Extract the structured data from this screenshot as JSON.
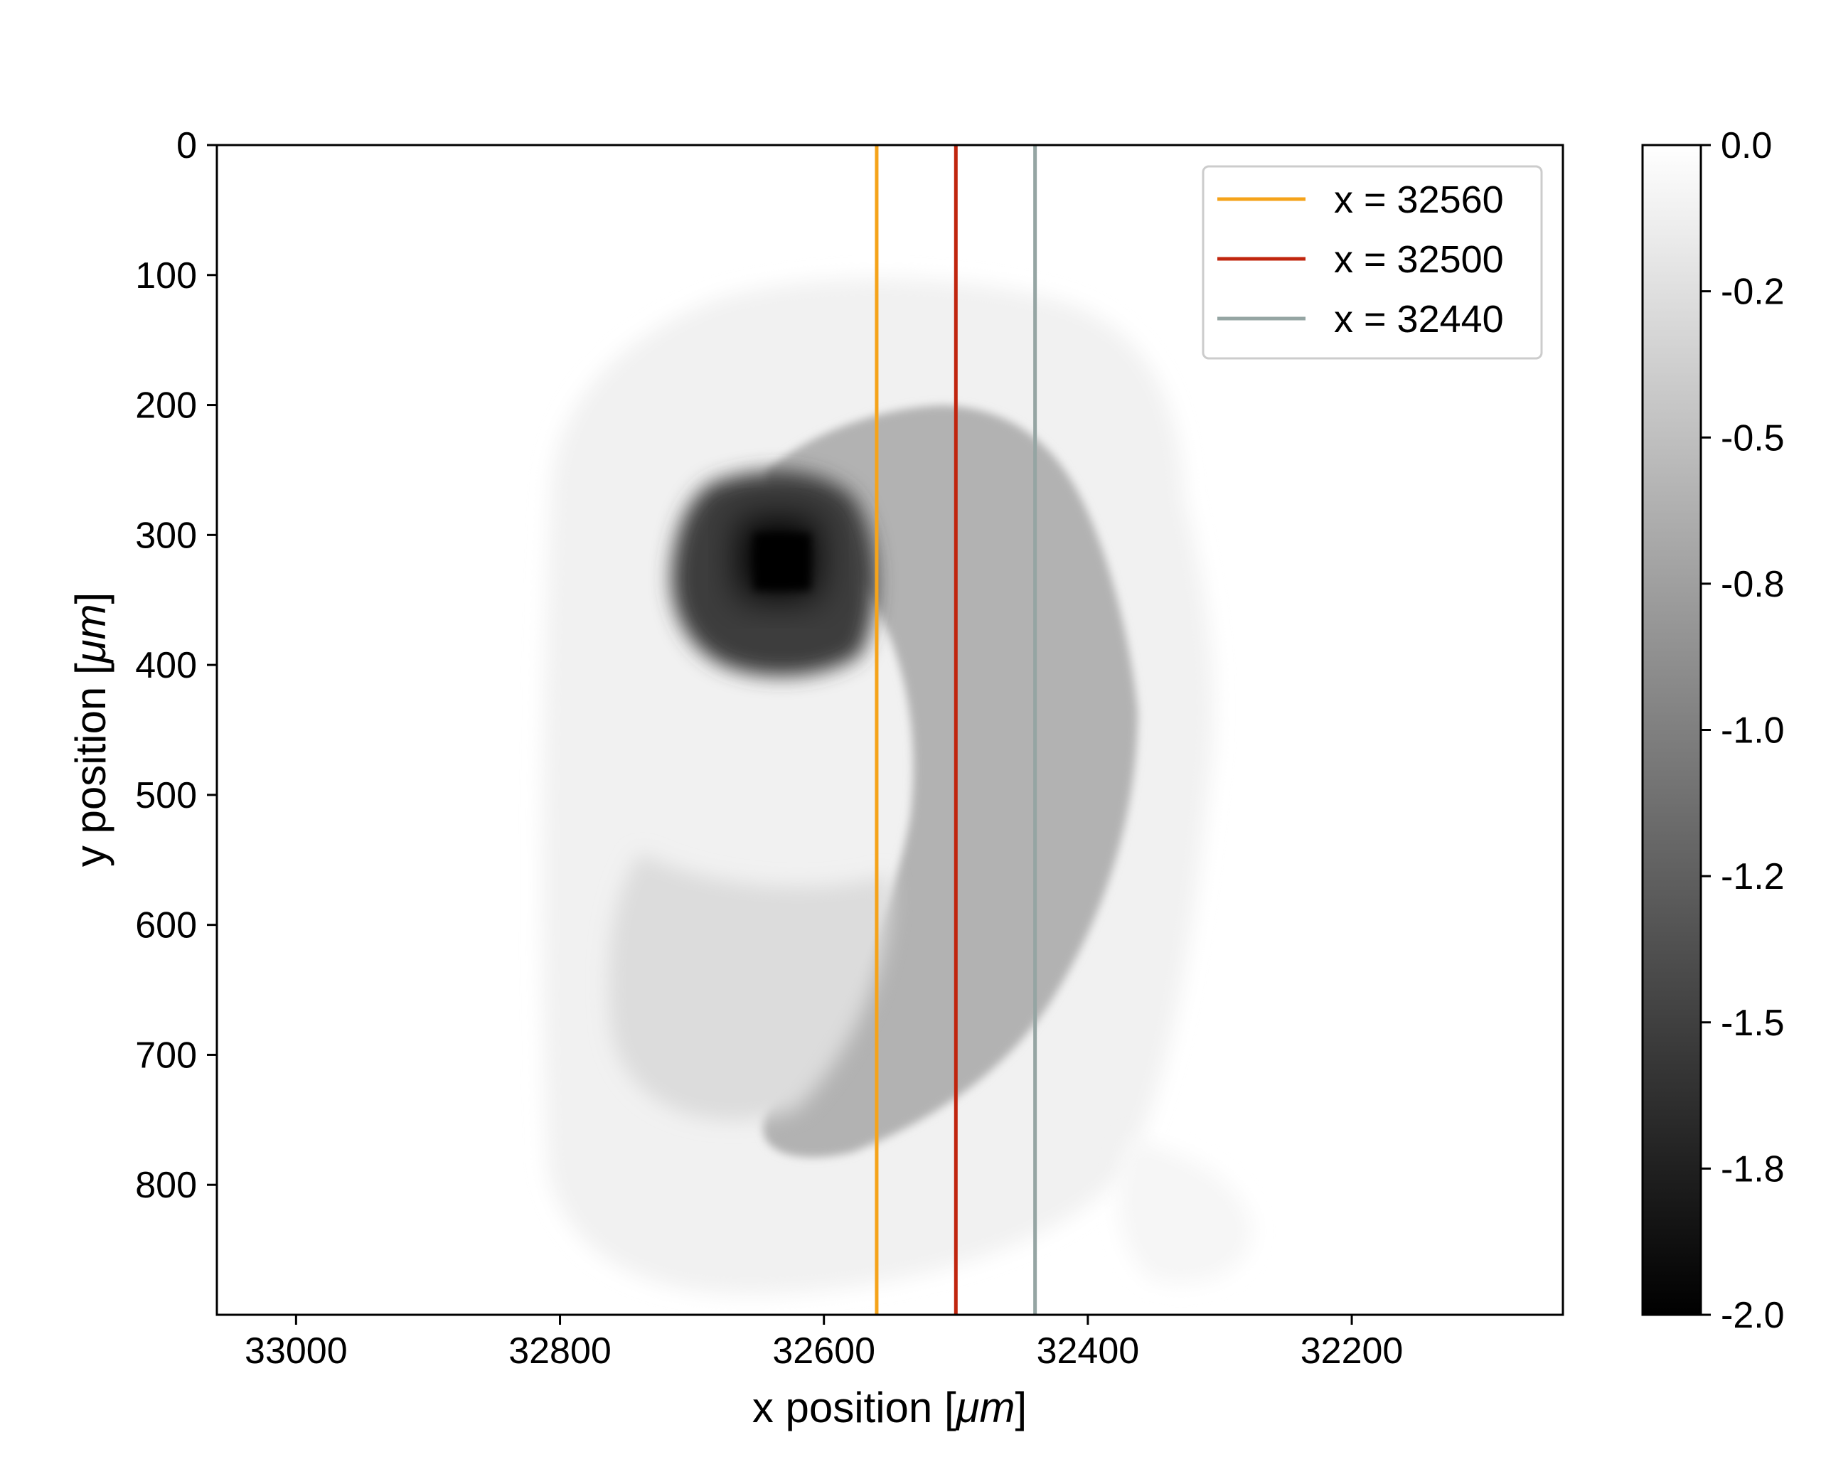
{
  "chart_data": {
    "type": "heatmap",
    "xlabel": {
      "prefix": "x position [",
      "unit": "μm",
      "suffix": "]"
    },
    "ylabel": {
      "prefix": "y position [",
      "unit": "μm",
      "suffix": "]"
    },
    "xlim": [
      33060,
      32040
    ],
    "ylim": [
      900,
      0
    ],
    "x_axis_inverted": true,
    "y_axis_inverted": true,
    "x_ticks": [
      33000,
      32800,
      32600,
      32400,
      32200
    ],
    "y_ticks": [
      0,
      100,
      200,
      300,
      400,
      500,
      600,
      700,
      800
    ],
    "x_tick_labels": [
      "33000",
      "32800",
      "32600",
      "32400",
      "32200"
    ],
    "y_tick_labels": [
      "0",
      "100",
      "200",
      "300",
      "400",
      "500",
      "600",
      "700",
      "800"
    ],
    "colormap": "gray",
    "colorbar": {
      "min": -2.0,
      "max": 0.0,
      "ticks": [
        0.0,
        -0.25,
        -0.5,
        -0.75,
        -1.0,
        -1.25,
        -1.5,
        -1.75,
        -2.0
      ],
      "tick_labels": [
        "0.0",
        "-0.2",
        "-0.5",
        "-0.8",
        "-1.0",
        "-1.2",
        "-1.5",
        "-1.8",
        "-2.0"
      ]
    },
    "features": [
      {
        "name": "outer halo",
        "x_range": [
          32800,
          32260
        ],
        "y_range": [
          110,
          850
        ],
        "value": -0.05
      },
      {
        "name": "crescent body",
        "x_range": [
          32700,
          32380
        ],
        "y_range": [
          200,
          770
        ],
        "value": -0.45
      },
      {
        "name": "dark core",
        "x_center": 32630,
        "y_center": 325,
        "half_width": 30,
        "value": -2.0
      }
    ],
    "vlines": [
      {
        "x": 32560,
        "color": "#F5A31A",
        "label": "x = 32560"
      },
      {
        "x": 32500,
        "color": "#C0250E",
        "label": "x = 32500"
      },
      {
        "x": 32440,
        "color": "#95A5A3",
        "label": "x = 32440"
      }
    ],
    "legend": {
      "position": "top-right"
    },
    "grid": false
  }
}
